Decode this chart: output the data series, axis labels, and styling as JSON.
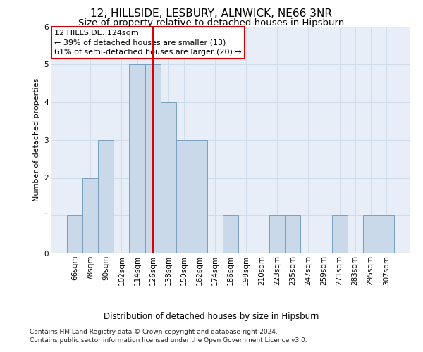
{
  "title": "12, HILLSIDE, LESBURY, ALNWICK, NE66 3NR",
  "subtitle": "Size of property relative to detached houses in Hipsburn",
  "xlabel": "Distribution of detached houses by size in Hipsburn",
  "ylabel": "Number of detached properties",
  "categories": [
    "66sqm",
    "78sqm",
    "90sqm",
    "102sqm",
    "114sqm",
    "126sqm",
    "138sqm",
    "150sqm",
    "162sqm",
    "174sqm",
    "186sqm",
    "198sqm",
    "210sqm",
    "223sqm",
    "235sqm",
    "247sqm",
    "259sqm",
    "271sqm",
    "283sqm",
    "295sqm",
    "307sqm"
  ],
  "values": [
    1,
    2,
    3,
    0,
    5,
    5,
    4,
    3,
    3,
    0,
    1,
    0,
    0,
    1,
    1,
    0,
    0,
    1,
    0,
    1,
    1
  ],
  "bar_color": "#c9d9ea",
  "bar_edge_color": "#7aa0c0",
  "red_line_index": 5,
  "annotation_line1": "12 HILLSIDE: 124sqm",
  "annotation_line2": "← 39% of detached houses are smaller (13)",
  "annotation_line3": "61% of semi-detached houses are larger (20) →",
  "annotation_box_color": "#ffffff",
  "annotation_box_edge": "#cc0000",
  "ylim": [
    0,
    6
  ],
  "yticks": [
    0,
    1,
    2,
    3,
    4,
    5,
    6
  ],
  "footer_line1": "Contains HM Land Registry data © Crown copyright and database right 2024.",
  "footer_line2": "Contains public sector information licensed under the Open Government Licence v3.0.",
  "grid_color": "#d0dcea",
  "background_color": "#e8eef8",
  "title_fontsize": 11,
  "subtitle_fontsize": 9.5,
  "axis_label_fontsize": 8,
  "tick_fontsize": 7.5,
  "annotation_fontsize": 8,
  "footer_fontsize": 6.5
}
